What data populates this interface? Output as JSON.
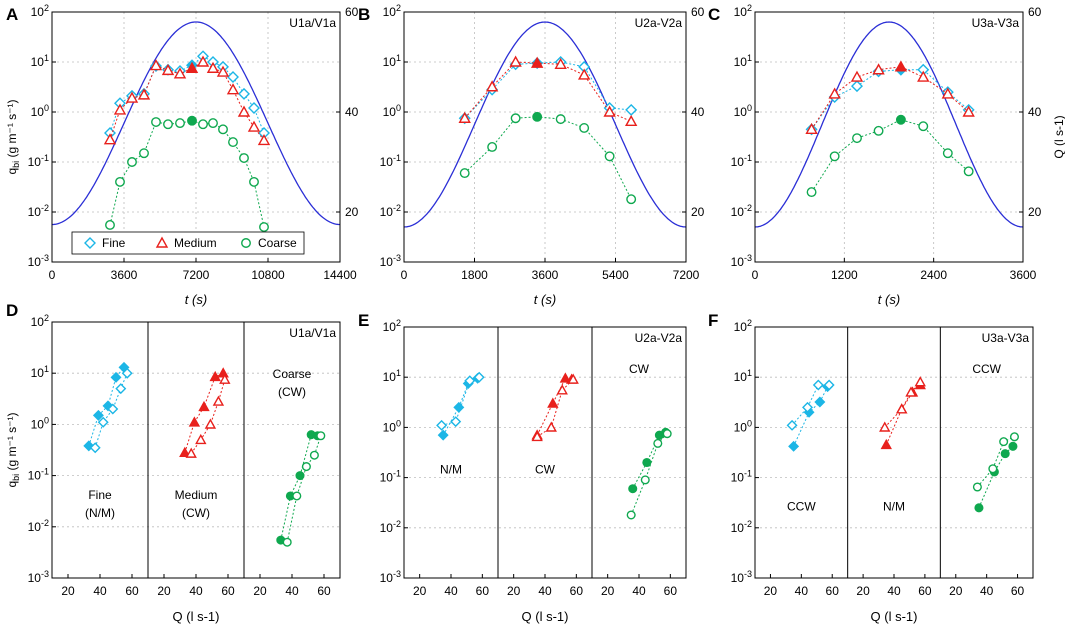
{
  "figure": {
    "panel_letters": [
      "A",
      "B",
      "C",
      "D",
      "E",
      "F"
    ],
    "q_symbol": "q",
    "q_subscript": "bi",
    "q_units": "(g m⁻¹ s⁻¹)",
    "time_axis_label": "t (s)",
    "flow_axis_label": "Q (l s⁻¹)"
  },
  "legend": [
    "Fine",
    "Medium",
    "Coarse"
  ],
  "colors": {
    "fine": "#1cb6e6",
    "medium": "#e8201c",
    "coarse": "#0fa84f",
    "hydrograph": "#2b2fd6"
  },
  "chart_data": [
    {
      "id": "A",
      "type": "scatter",
      "title": "U1a/V1a",
      "xlabel": "t (s)",
      "ylabel": "q_bi (g m-1 s-1)",
      "y2label": "",
      "xlim": [
        0,
        14400
      ],
      "xticks": [
        0,
        3600,
        7200,
        10800,
        14400
      ],
      "ylim_log": [
        0.001,
        100
      ],
      "y2lim": [
        10,
        60
      ],
      "y2ticks": [
        20,
        40,
        60
      ],
      "hydrograph": {
        "t_start": 0,
        "t_peak": 7200,
        "t_end": 14400,
        "q_base": 17.5,
        "q_peak": 58
      },
      "series": [
        {
          "name": "Fine",
          "x": [
            2900,
            3400,
            4000,
            4600,
            5200,
            5800,
            6400,
            7000,
            7550,
            8050,
            8550,
            9050,
            9600,
            10100,
            10600
          ],
          "values": [
            0.38,
            1.5,
            2.1,
            2.3,
            8.3,
            7.0,
            6.6,
            8.6,
            13.0,
            10.0,
            8.0,
            5.0,
            2.3,
            1.2,
            0.38
          ]
        },
        {
          "name": "Medium",
          "x": [
            2900,
            3400,
            4000,
            4600,
            5200,
            5800,
            6400,
            7000,
            7550,
            8050,
            8550,
            9050,
            9600,
            10100,
            10600
          ],
          "values": [
            0.28,
            1.1,
            1.9,
            2.2,
            8.5,
            6.8,
            5.8,
            7.5,
            10.0,
            7.5,
            6.3,
            2.8,
            1.0,
            0.5,
            0.27
          ]
        },
        {
          "name": "Coarse",
          "x": [
            2900,
            3400,
            4000,
            4600,
            5200,
            5800,
            6400,
            7000,
            7550,
            8050,
            8550,
            9050,
            9600,
            10100,
            10600
          ],
          "values": [
            0.0055,
            0.04,
            0.1,
            0.15,
            0.63,
            0.57,
            0.6,
            0.67,
            0.57,
            0.6,
            0.45,
            0.25,
            0.12,
            0.04,
            0.005
          ]
        }
      ],
      "filled_point_index": 7
    },
    {
      "id": "B",
      "type": "scatter",
      "title": "U2a-V2a",
      "xlabel": "t (s)",
      "ylabel": "",
      "y2label": "",
      "xlim": [
        0,
        7200
      ],
      "xticks": [
        0,
        1800,
        3600,
        5400,
        7200
      ],
      "ylim_log": [
        0.001,
        100
      ],
      "y2lim": [
        10,
        60
      ],
      "y2ticks": [
        20,
        40,
        60
      ],
      "hydrograph": {
        "t_start": 0,
        "t_peak": 3600,
        "t_end": 7200,
        "q_base": 17,
        "q_peak": 58
      },
      "series": [
        {
          "name": "Fine",
          "x": [
            1550,
            2250,
            2850,
            3400,
            4000,
            4600,
            5250,
            5800
          ],
          "values": [
            0.75,
            2.8,
            9.0,
            9.5,
            10.0,
            8.0,
            1.2,
            1.1
          ]
        },
        {
          "name": "Medium",
          "x": [
            1550,
            2250,
            2850,
            3400,
            4000,
            4600,
            5250,
            5800
          ],
          "values": [
            0.75,
            3.2,
            10.0,
            9.5,
            9.0,
            5.5,
            1.0,
            0.65
          ]
        },
        {
          "name": "Coarse",
          "x": [
            1550,
            2250,
            2850,
            3400,
            4000,
            4600,
            5250,
            5800
          ],
          "values": [
            0.06,
            0.2,
            0.75,
            0.8,
            0.72,
            0.48,
            0.13,
            0.018
          ]
        }
      ],
      "filled_point_index": 3
    },
    {
      "id": "C",
      "type": "scatter",
      "title": "U3a-V3a",
      "xlabel": "t (s)",
      "ylabel": "",
      "y2label": "Q (l s-1)",
      "xlim": [
        0,
        3600
      ],
      "xticks": [
        0,
        1200,
        2400,
        3600
      ],
      "ylim_log": [
        0.001,
        100
      ],
      "y2lim": [
        10,
        60
      ],
      "y2ticks": [
        20,
        40,
        60
      ],
      "hydrograph": {
        "t_start": 0,
        "t_peak": 1800,
        "t_end": 3600,
        "q_base": 17,
        "q_peak": 58
      },
      "series": [
        {
          "name": "Fine",
          "x": [
            760,
            1070,
            1370,
            1660,
            1960,
            2260,
            2590,
            2870
          ],
          "values": [
            0.45,
            2.0,
            3.3,
            6.5,
            7.0,
            7.0,
            2.5,
            1.1
          ]
        },
        {
          "name": "Medium",
          "x": [
            760,
            1070,
            1370,
            1660,
            1960,
            2260,
            2590,
            2870
          ],
          "values": [
            0.45,
            2.3,
            5.0,
            7.0,
            8.0,
            5.0,
            2.3,
            1.0
          ]
        },
        {
          "name": "Coarse",
          "x": [
            760,
            1070,
            1370,
            1660,
            1960,
            2260,
            2590,
            2870
          ],
          "values": [
            0.025,
            0.13,
            0.3,
            0.42,
            0.7,
            0.52,
            0.15,
            0.065
          ]
        }
      ],
      "filled_point_index": 4
    },
    {
      "id": "D",
      "type": "scatter",
      "title": "U1a/V1a",
      "xlabel": "Q (l s-1)",
      "ylabel": "q_bi (g m-1 s-1)",
      "xlim": [
        10,
        70
      ],
      "xticks": [
        20,
        40,
        60
      ],
      "ylim_log": [
        0.001,
        100
      ],
      "subpanels": [
        {
          "class": "Fine",
          "label_lines": [
            "Fine",
            "(N/M)"
          ],
          "rising": {
            "Q": [
              33,
              39,
              45,
              50,
              55
            ],
            "q": [
              0.38,
              1.5,
              2.3,
              8.3,
              13.0
            ]
          },
          "falling": {
            "Q": [
              37,
              42,
              48,
              53,
              57
            ],
            "q": [
              0.35,
              1.1,
              2.0,
              5.0,
              10.0
            ]
          }
        },
        {
          "class": "Medium",
          "label_lines": [
            "Medium",
            "(CW)"
          ],
          "rising": {
            "Q": [
              33,
              39,
              45,
              52,
              57
            ],
            "q": [
              0.28,
              1.1,
              2.2,
              8.5,
              10.0
            ]
          },
          "falling": {
            "Q": [
              37,
              43,
              49,
              54,
              58
            ],
            "q": [
              0.27,
              0.5,
              1.0,
              2.8,
              7.5
            ]
          }
        },
        {
          "class": "Coarse",
          "label_lines": [
            "Coarse",
            "(CW)"
          ],
          "rising": {
            "Q": [
              33,
              39,
              45,
              52,
              56
            ],
            "q": [
              0.0055,
              0.04,
              0.1,
              0.63,
              0.6
            ]
          },
          "falling": {
            "Q": [
              37,
              43,
              49,
              54,
              58
            ],
            "q": [
              0.005,
              0.04,
              0.15,
              0.25,
              0.6
            ]
          }
        }
      ]
    },
    {
      "id": "E",
      "type": "scatter",
      "title": "U2a-V2a",
      "xlabel": "Q (l s-1)",
      "ylabel": "",
      "xlim": [
        10,
        70
      ],
      "xticks": [
        20,
        40,
        60
      ],
      "ylim_log": [
        0.001,
        100
      ],
      "subpanels": [
        {
          "class": "Fine",
          "label_lines": [
            "N/M"
          ],
          "rising": {
            "Q": [
              35,
              45,
              51,
              57
            ],
            "q": [
              0.7,
              2.5,
              7.5,
              9.5
            ]
          },
          "falling": {
            "Q": [
              34,
              43,
              52,
              58
            ],
            "q": [
              1.1,
              1.3,
              8.5,
              10.0
            ]
          }
        },
        {
          "class": "Medium",
          "label_lines": [
            "CW"
          ],
          "rising": {
            "Q": [
              35,
              45,
              53,
              57
            ],
            "q": [
              0.7,
              3.0,
              9.5,
              9.0
            ]
          },
          "falling": {
            "Q": [
              35,
              44,
              51,
              58
            ],
            "q": [
              0.65,
              1.0,
              5.5,
              9.0
            ]
          }
        },
        {
          "class": "Coarse",
          "label_lines": [
            "CW"
          ],
          "rising": {
            "Q": [
              36,
              45,
              53,
              57
            ],
            "q": [
              0.06,
              0.2,
              0.7,
              0.8
            ]
          },
          "falling": {
            "Q": [
              35,
              44,
              52,
              58
            ],
            "q": [
              0.018,
              0.09,
              0.48,
              0.75
            ]
          }
        }
      ]
    },
    {
      "id": "F",
      "type": "scatter",
      "title": "U3a-V3a",
      "xlabel": "Q (l s-1)",
      "ylabel": "",
      "xlim": [
        10,
        70
      ],
      "xticks": [
        20,
        40,
        60
      ],
      "ylim_log": [
        0.001,
        100
      ],
      "subpanels": [
        {
          "class": "Fine",
          "label_lines": [
            "CCW"
          ],
          "rising": {
            "Q": [
              35,
              45,
              52,
              57
            ],
            "q": [
              0.42,
              2.0,
              3.2,
              6.5
            ]
          },
          "falling": {
            "Q": [
              34,
              44,
              51,
              58
            ],
            "q": [
              1.1,
              2.5,
              7.0,
              7.0
            ]
          }
        },
        {
          "class": "Medium",
          "label_lines": [
            "N/M"
          ],
          "rising": {
            "Q": [
              35,
              45,
              52,
              57
            ],
            "q": [
              0.45,
              2.3,
              5.0,
              7.0
            ]
          },
          "falling": {
            "Q": [
              34,
              45,
              51,
              57
            ],
            "q": [
              1.0,
              2.3,
              5.0,
              8.0
            ]
          }
        },
        {
          "class": "Coarse",
          "label_lines": [
            "CCW"
          ],
          "rising": {
            "Q": [
              35,
              45,
              52,
              57
            ],
            "q": [
              0.025,
              0.13,
              0.3,
              0.42
            ]
          },
          "falling": {
            "Q": [
              34,
              44,
              51,
              58
            ],
            "q": [
              0.065,
              0.15,
              0.52,
              0.65
            ]
          }
        }
      ]
    }
  ]
}
